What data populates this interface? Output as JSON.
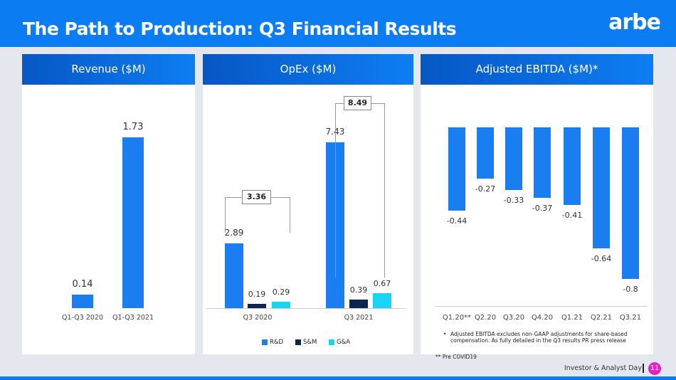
{
  "header": {
    "title": "The Path to Production: Q3 Financial Results",
    "logo": "arbe"
  },
  "footer": {
    "event": "Investor & Analyst Day",
    "page": "11"
  },
  "colors": {
    "primary": "#1a7ef0",
    "navy": "#0d2350",
    "cyan": "#1ad4f5",
    "badge": "#e81ec8"
  },
  "chart_data": [
    {
      "type": "bar",
      "title": "Revenue ($M)",
      "categories": [
        "Q1-Q3 2020",
        "Q1-Q3 2021"
      ],
      "values": [
        0.14,
        1.73
      ],
      "labels": [
        "0.14",
        "1.73"
      ]
    },
    {
      "type": "bar",
      "title": "OpEx ($M)",
      "categories": [
        "Q3 2020",
        "Q3 2021"
      ],
      "series": [
        {
          "name": "R&D",
          "values": [
            2.89,
            7.43
          ],
          "labels": [
            "2.89",
            "7.43"
          ]
        },
        {
          "name": "S&M",
          "values": [
            0.19,
            0.39
          ],
          "labels": [
            "0.19",
            "0.39"
          ]
        },
        {
          "name": "G&A",
          "values": [
            0.29,
            0.67
          ],
          "labels": [
            "0.29",
            "0.67"
          ]
        }
      ],
      "totals": [
        "3.36",
        "8.49"
      ],
      "legend": "bottom"
    },
    {
      "type": "bar",
      "title": "Adjusted EBITDA ($M)*",
      "categories": [
        "Q1.20**",
        "Q2.20",
        "Q3.20",
        "Q4.20",
        "Q1.21",
        "Q2.21",
        "Q3.21"
      ],
      "values": [
        -0.44,
        -0.27,
        -0.33,
        -0.37,
        -0.41,
        -0.64,
        -0.8
      ],
      "labels": [
        "-0.44",
        "-0.27",
        "-0.33",
        "-0.37",
        "-0.41",
        "-0.64",
        "-0.8"
      ],
      "notes": [
        "Adjusted EBITDA excludes non-GAAP adjustments for share-based compensation. As fully detailed in the Q3 results PR press release",
        "** Pre COVID19"
      ]
    }
  ]
}
